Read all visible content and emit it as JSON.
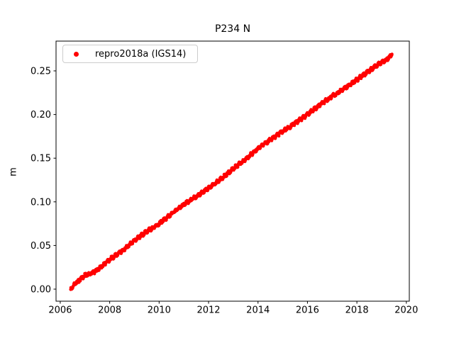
{
  "window": {
    "background": "#ffffff"
  },
  "chart_data": {
    "type": "scatter",
    "title": "P234 N",
    "xlabel": "",
    "ylabel": "m",
    "grid": false,
    "legend_position": "upper left",
    "legend": [
      {
        "label": "repro2018a (IGS14)",
        "marker": "dot-icon",
        "color": "#ff0000"
      }
    ],
    "colors": {
      "marker": "#ff0000",
      "axis": "#000000",
      "tick_label": "#000000",
      "legend_border": "#cccccc",
      "background": "#ffffff"
    },
    "xlim": [
      2005.83,
      2020.12
    ],
    "ylim": [
      -0.0138,
      0.2841
    ],
    "xticks": [
      2006,
      2008,
      2010,
      2012,
      2014,
      2016,
      2018,
      2020
    ],
    "xtick_labels": [
      "2006",
      "2008",
      "2010",
      "2012",
      "2014",
      "2016",
      "2018",
      "2020"
    ],
    "yticks": [
      0.0,
      0.05,
      0.1,
      0.15,
      0.2,
      0.25
    ],
    "ytick_labels": [
      "0.00",
      "0.05",
      "0.10",
      "0.15",
      "0.20",
      "0.25"
    ],
    "series": [
      {
        "name": "repro2018a (IGS14)",
        "color": "#ff0000",
        "trend_keypoints": [
          [
            2006.42,
            0.0
          ],
          [
            2006.6,
            0.006
          ],
          [
            2006.8,
            0.011
          ],
          [
            2007.0,
            0.016
          ],
          [
            2007.25,
            0.018
          ],
          [
            2007.5,
            0.022
          ],
          [
            2007.8,
            0.029
          ],
          [
            2008.1,
            0.036
          ],
          [
            2008.5,
            0.044
          ],
          [
            2009.0,
            0.056
          ],
          [
            2009.5,
            0.066
          ],
          [
            2010.0,
            0.075
          ],
          [
            2010.5,
            0.086
          ],
          [
            2011.0,
            0.097
          ],
          [
            2011.5,
            0.106
          ],
          [
            2012.0,
            0.116
          ],
          [
            2012.5,
            0.126
          ],
          [
            2013.0,
            0.138
          ],
          [
            2013.5,
            0.149
          ],
          [
            2014.0,
            0.161
          ],
          [
            2014.5,
            0.171
          ],
          [
            2015.0,
            0.181
          ],
          [
            2015.5,
            0.19
          ],
          [
            2016.0,
            0.2
          ],
          [
            2016.5,
            0.211
          ],
          [
            2017.0,
            0.221
          ],
          [
            2017.5,
            0.23
          ],
          [
            2018.0,
            0.24
          ],
          [
            2018.5,
            0.25
          ],
          [
            2018.9,
            0.258
          ],
          [
            2019.2,
            0.263
          ],
          [
            2019.43,
            0.269
          ]
        ],
        "points_per_year": 110,
        "scatter_halfwidth_m": 0.0016,
        "micro_wiggle_amp_m": 0.001,
        "marker_radius_px": 2.2
      }
    ]
  }
}
